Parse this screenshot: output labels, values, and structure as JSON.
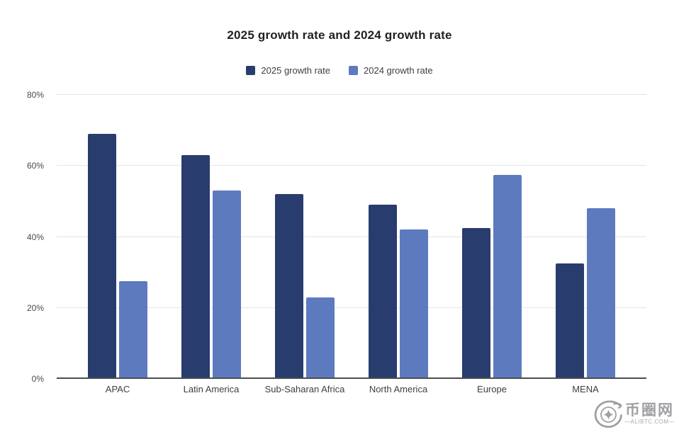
{
  "chart_data": {
    "type": "bar",
    "title": "2025 growth rate and 2024 growth rate",
    "categories": [
      "APAC",
      "Latin America",
      "Sub-Saharan Africa",
      "North America",
      "Europe",
      "MENA"
    ],
    "series": [
      {
        "name": "2025 growth rate",
        "color": "#283c6e",
        "values": [
          69,
          63,
          52,
          49,
          42.5,
          32.5
        ]
      },
      {
        "name": "2024 growth rate",
        "color": "#5e7abf",
        "values": [
          27.5,
          53,
          23,
          42,
          57.5,
          48
        ]
      }
    ],
    "xlabel": "",
    "ylabel": "",
    "ylim": [
      0,
      80
    ],
    "yticks": [
      "0%",
      "20%",
      "40%",
      "60%",
      "80%"
    ],
    "grid": true,
    "legend_position": "top"
  },
  "watermark": {
    "site_name": "币圈网",
    "site_url": "—ALIBTC.COM—"
  },
  "colors": {
    "series_2025": "#283c6e",
    "series_2024": "#5e7abf",
    "gridline": "#e2e4e7",
    "axis_line": "#4a4d52",
    "watermark_gray": "#8f9093"
  }
}
